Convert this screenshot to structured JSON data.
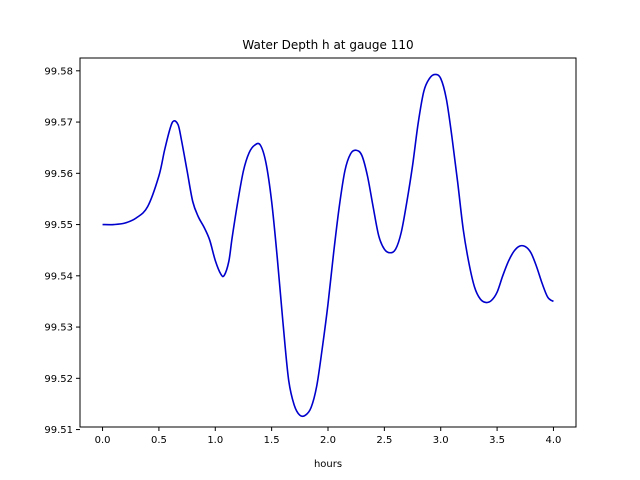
{
  "chart_data": {
    "type": "line",
    "title": "Water Depth h at gauge 110",
    "xlabel": "hours",
    "ylabel": "",
    "xlim": [
      -0.2,
      4.2
    ],
    "ylim": [
      99.5105,
      99.5825
    ],
    "xticks": [
      {
        "value": 0.0,
        "label": "0.0"
      },
      {
        "value": 0.5,
        "label": "0.5"
      },
      {
        "value": 1.0,
        "label": "1.0"
      },
      {
        "value": 1.5,
        "label": "1.5"
      },
      {
        "value": 2.0,
        "label": "2.0"
      },
      {
        "value": 2.5,
        "label": "2.5"
      },
      {
        "value": 3.0,
        "label": "3.0"
      },
      {
        "value": 3.5,
        "label": "3.5"
      },
      {
        "value": 4.0,
        "label": "4.0"
      }
    ],
    "yticks": [
      {
        "value": 99.51,
        "label": "99.51"
      },
      {
        "value": 99.52,
        "label": "99.52"
      },
      {
        "value": 99.53,
        "label": "99.53"
      },
      {
        "value": 99.54,
        "label": "99.54"
      },
      {
        "value": 99.55,
        "label": "99.55"
      },
      {
        "value": 99.56,
        "label": "99.56"
      },
      {
        "value": 99.57,
        "label": "99.57"
      },
      {
        "value": 99.58,
        "label": "99.58"
      }
    ],
    "grid": false,
    "series": [
      {
        "color": "#0000cc",
        "x": [
          0.0,
          0.1,
          0.2,
          0.3,
          0.4,
          0.5,
          0.55,
          0.6,
          0.63,
          0.67,
          0.7,
          0.75,
          0.8,
          0.85,
          0.9,
          0.95,
          1.0,
          1.05,
          1.08,
          1.12,
          1.15,
          1.2,
          1.25,
          1.3,
          1.35,
          1.4,
          1.45,
          1.5,
          1.55,
          1.6,
          1.65,
          1.7,
          1.75,
          1.8,
          1.85,
          1.9,
          1.95,
          2.0,
          2.05,
          2.1,
          2.15,
          2.2,
          2.25,
          2.3,
          2.35,
          2.4,
          2.45,
          2.5,
          2.55,
          2.6,
          2.65,
          2.7,
          2.75,
          2.8,
          2.85,
          2.9,
          2.95,
          3.0,
          3.05,
          3.1,
          3.15,
          3.2,
          3.25,
          3.3,
          3.35,
          3.4,
          3.45,
          3.5,
          3.55,
          3.6,
          3.65,
          3.7,
          3.75,
          3.8,
          3.85,
          3.9,
          3.95,
          4.0
        ],
        "values": [
          99.55,
          99.55,
          99.5503,
          99.5513,
          99.5535,
          99.5595,
          99.5645,
          99.5688,
          99.5702,
          99.5695,
          99.5665,
          99.5605,
          99.5545,
          99.5515,
          99.5495,
          99.547,
          99.543,
          99.5403,
          99.5401,
          99.5428,
          99.5475,
          99.5545,
          99.5605,
          99.564,
          99.5655,
          99.5655,
          99.562,
          99.5545,
          99.5435,
          99.531,
          99.5198,
          99.5148,
          99.5128,
          99.5128,
          99.5143,
          99.5185,
          99.526,
          99.5345,
          99.5445,
          99.5535,
          99.5605,
          99.5638,
          99.5645,
          99.5635,
          99.5595,
          99.5535,
          99.5478,
          99.5452,
          99.5445,
          99.5452,
          99.5485,
          99.5545,
          99.5615,
          99.5698,
          99.576,
          99.5785,
          99.5793,
          99.5785,
          99.5745,
          99.567,
          99.5583,
          99.549,
          99.5425,
          99.5378,
          99.5355,
          99.5348,
          99.5352,
          99.5368,
          99.54,
          99.5428,
          99.5448,
          99.5458,
          99.5457,
          99.5445,
          99.5418,
          99.5385,
          99.5358,
          99.535
        ]
      }
    ]
  }
}
